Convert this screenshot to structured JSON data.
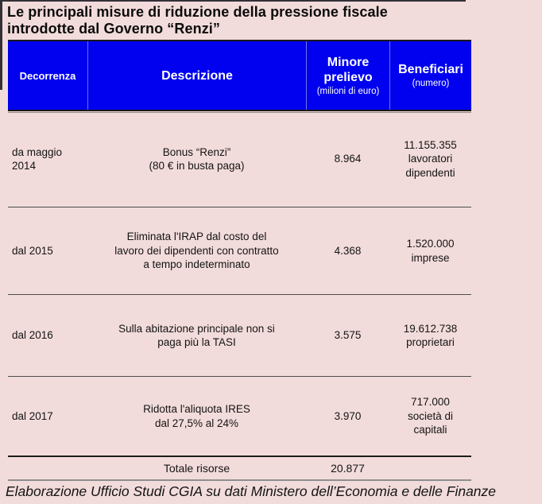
{
  "title": "Le principali misure di riduzione della pressione fiscale\nintrodotte dal Governo “Renzi”",
  "header": {
    "col1": {
      "label": "Decorrenza"
    },
    "col2": {
      "label": "Descrizione"
    },
    "col3": {
      "label": "Minore\nprelievo",
      "sub": "(milioni di euro)"
    },
    "col4": {
      "label": "Beneficiari",
      "sub": "(numero)"
    }
  },
  "rows": [
    {
      "decorrenza": "da maggio\n2014",
      "descrizione": "Bonus “Renzi”\n(80 € in busta paga)",
      "minore": "8.964",
      "beneficiari": "11.155.355\nlavoratori\ndipendenti"
    },
    {
      "decorrenza": "dal 2015",
      "descrizione": "Eliminata l'IRAP dal costo del\nlavoro dei dipendenti con contratto\na tempo indeterminato",
      "minore": "4.368",
      "beneficiari": "1.520.000\nimprese"
    },
    {
      "decorrenza": "dal 2016",
      "descrizione": "Sulla abitazione principale non si\npaga più la TASI",
      "minore": "3.575",
      "beneficiari": "19.612.738\nproprietari"
    },
    {
      "decorrenza": "dal 2017",
      "descrizione": "Ridotta l'aliquota IRES\ndal 27,5% al 24%",
      "minore": "3.970",
      "beneficiari": "717.000\nsocietà di\ncapitali"
    }
  ],
  "total": {
    "label": "Totale risorse",
    "value": "20.877"
  },
  "footer": "Elaborazione Ufficio Studi CGIA su dati Ministero dell’Economia e delle Finanze",
  "colors": {
    "background": "#F2DCDB",
    "header_bg": "#0101F0",
    "header_text": "#FFFFFF",
    "text": "#141414",
    "line": "#4D4D4D",
    "total_bottom_line": "#8F8F8F"
  },
  "chart_data": {
    "type": "table",
    "title": "Le principali misure di riduzione della pressione fiscale introdotte dal Governo “Renzi”",
    "columns": [
      "Decorrenza",
      "Descrizione",
      "Minore prelievo (milioni di euro)",
      "Beneficiari (numero)"
    ],
    "rows": [
      [
        "da maggio 2014",
        "Bonus “Renzi” (80 € in busta paga)",
        8964,
        "11.155.355 lavoratori dipendenti"
      ],
      [
        "dal 2015",
        "Eliminata l'IRAP dal costo del lavoro dei dipendenti con contratto a tempo indeterminato",
        4368,
        "1.520.000 imprese"
      ],
      [
        "dal 2016",
        "Sulla abitazione principale non si paga più la TASI",
        3575,
        "19.612.738 proprietari"
      ],
      [
        "dal 2017",
        "Ridotta l'aliquota IRES dal 27,5% al 24%",
        3970,
        "717.000 società di capitali"
      ]
    ],
    "total": {
      "label": "Totale risorse",
      "minore_prelievo": 20877
    },
    "source": "Elaborazione Ufficio Studi CGIA su dati Ministero dell’Economia e delle Finanze"
  }
}
